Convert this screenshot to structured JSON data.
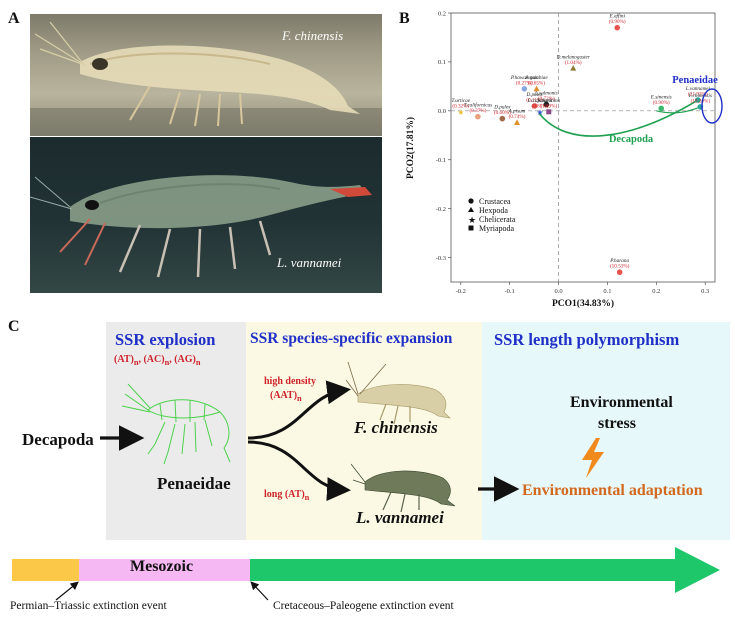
{
  "panels": {
    "a": "A",
    "b": "B",
    "c": "C"
  },
  "panel_a": {
    "top_species": "F. chinensis",
    "bottom_species": "L. vannamei"
  },
  "chart_data": {
    "type": "scatter",
    "xlabel": "PCO1(34.83%)",
    "ylabel": "PCO2(17.81%)",
    "xlim": [
      -0.22,
      0.32
    ],
    "ylim": [
      -0.35,
      0.2
    ],
    "xticks": [
      "-0.2",
      "-0.1",
      "0.0",
      "0.1",
      "0.2",
      "0.3"
    ],
    "yticks": [
      "0.2",
      "0.1",
      "0.0",
      "-0.1",
      "-0.2",
      "-0.3"
    ],
    "legend": [
      "Crustacea",
      "Hexpoda",
      "Chelicerata",
      "Myriapoda"
    ],
    "group_labels": [
      "Penaeidae",
      "Decapoda"
    ],
    "points": [
      {
        "name": "E.affini",
        "pct": "(0.90%)",
        "x": 0.12,
        "y": 0.17,
        "group": "Crustacea",
        "color": "#e5564e"
      },
      {
        "name": "D.melanogaster",
        "pct": "(1.04%)",
        "x": 0.03,
        "y": 0.087,
        "group": "Hexpoda",
        "color": "#8c7a35"
      },
      {
        "name": "A.gambiae",
        "pct": "(0.65%)",
        "x": -0.045,
        "y": 0.045,
        "group": "Hexpoda",
        "color": "#e0902a"
      },
      {
        "name": "P.hawaiensis",
        "pct": "(0.27%)",
        "x": -0.07,
        "y": 0.045,
        "group": "Crustacea",
        "color": "#8aa7e0"
      },
      {
        "name": "L.salmonis",
        "pct": "(0.72%)",
        "x": -0.025,
        "y": 0.013,
        "group": "Crustacea",
        "color": "#222222"
      },
      {
        "name": "D.pulex",
        "pct": "(0.11%)",
        "x": -0.049,
        "y": 0.01,
        "group": "Crustacea",
        "color": "#e5564e"
      },
      {
        "name": "I.scapularis",
        "pct": "(0.85%)",
        "x": -0.038,
        "y": -0.002,
        "group": "Chelicerata",
        "color": "#2e57c8"
      },
      {
        "name": "T.californicus",
        "pct": "(0.37%)",
        "x": -0.165,
        "y": -0.012,
        "group": "Crustacea",
        "color": "#e8a07a"
      },
      {
        "name": "T.urticae",
        "pct": "(0.32%)",
        "x": -0.2,
        "y": -0.002,
        "group": "Chelicerata",
        "color": "#e8c23a"
      },
      {
        "name": "D.pulex",
        "pct": "(0.60%)",
        "x": -0.115,
        "y": -0.016,
        "group": "Crustacea",
        "color": "#9c6b4a"
      },
      {
        "name": "S.maritima",
        "pct": "(1.69%)",
        "x": -0.02,
        "y": -0.002,
        "group": "Myriapoda",
        "color": "#8a4a8a"
      },
      {
        "name": "A.pisum",
        "pct": "(0.74%)",
        "x": -0.085,
        "y": -0.024,
        "group": "Hexpoda",
        "color": "#e0902a"
      },
      {
        "name": "E.sinensis",
        "pct": "(0.90%)",
        "x": 0.21,
        "y": 0.005,
        "group": "Crustacea",
        "color": "#3cb86e"
      },
      {
        "name": "L.vannamei",
        "pct": "(21.93%)",
        "x": 0.285,
        "y": 0.022,
        "group": "Crustacea",
        "color": "#2aa596"
      },
      {
        "name": "F.chinensis",
        "pct": "(19.20%)",
        "x": 0.29,
        "y": 0.008,
        "group": "Crustacea",
        "color": "#2aa596"
      },
      {
        "name": "P.harana",
        "pct": "(10.53%)",
        "x": 0.125,
        "y": -0.33,
        "group": "Crustacea",
        "color": "#e5564e"
      }
    ]
  },
  "panel_c": {
    "box1_title": "SSR explosion",
    "box1_motifs": "(AT)n, (AC)n, (AG)n",
    "box2_title": "SSR species-specific expansion",
    "box3_title": "SSR length polymorphism",
    "decapoda": "Decapoda",
    "penaeidae": "Penaeidae",
    "high_density_1": "high density",
    "high_density_2": "(AAT)n",
    "long_at": "long (AT)n",
    "species_1": "F. chinensis",
    "species_2": "L. vannamei",
    "env_stress_1": "Environmental",
    "env_stress_2": "stress",
    "env_adaptation": "Environmental adaptation",
    "era": "Mesozoic",
    "event_1": "Permian–Triassic extinction event",
    "event_2": "Cretaceous–Paleogene extinction event"
  },
  "colors": {
    "title_blue": "#1f2fc8",
    "red": "#d0222a",
    "orange": "#d3691e",
    "green": "#1fa050",
    "arrow_green": "#1ec86a"
  }
}
